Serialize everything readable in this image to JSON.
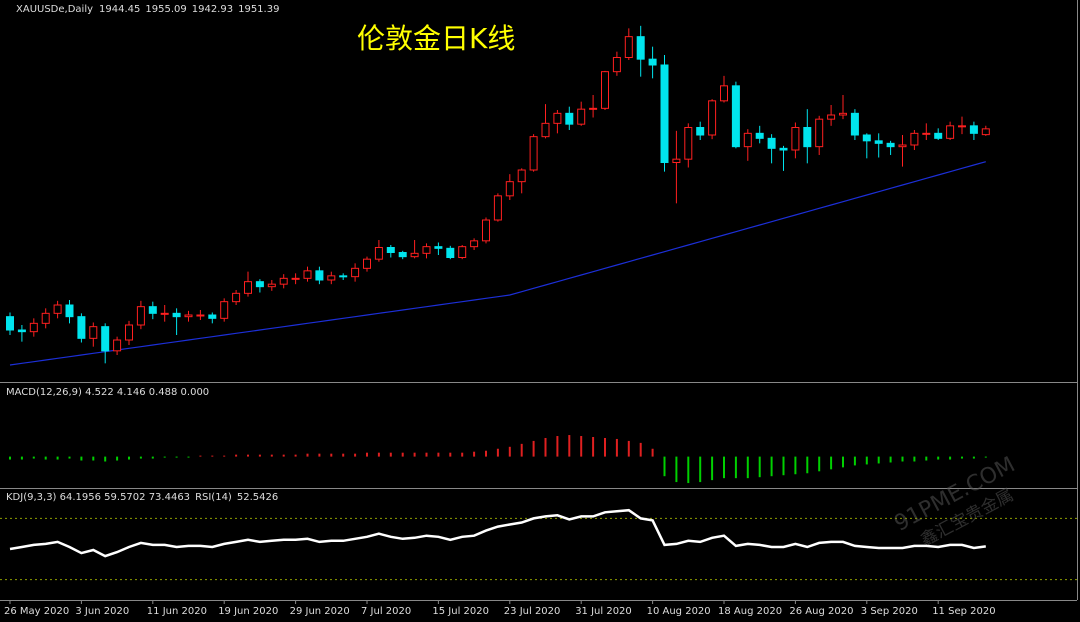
{
  "chart_data": {
    "type": "candlestick",
    "title": "伦敦金日K线",
    "symbol": "XAUUSDe,Daily",
    "categories": [
      "26 May 2020",
      null,
      null,
      null,
      null,
      null,
      "3 Jun 2020",
      null,
      null,
      null,
      null,
      null,
      "11 Jun 2020",
      null,
      null,
      null,
      null,
      null,
      "19 Jun 2020",
      null,
      null,
      null,
      null,
      null,
      "29 Jun 2020",
      null,
      null,
      null,
      null,
      null,
      "7 Jul 2020",
      null,
      null,
      null,
      null,
      null,
      "15 Jul 2020",
      null,
      null,
      null,
      null,
      null,
      "23 Jul 2020",
      null,
      null,
      null,
      null,
      null,
      "31 Jul 2020",
      null,
      null,
      null,
      null,
      null,
      "10 Aug 2020",
      null,
      null,
      null,
      null,
      null,
      "18 Aug 2020",
      null,
      null,
      null,
      null,
      null,
      "26 Aug 2020",
      null,
      null,
      null,
      null,
      null,
      "3 Sep 2020",
      null,
      null,
      null,
      null,
      null,
      "11 Sep 2020",
      null,
      null,
      null,
      null
    ],
    "open": [
      1726,
      1710,
      1708,
      1718,
      1730,
      1740,
      1726,
      1700,
      1714,
      1685,
      1698,
      1716,
      1738,
      1730,
      1730,
      1726,
      1728,
      1728,
      1724,
      1744,
      1754,
      1768,
      1762,
      1765,
      1772,
      1772,
      1781,
      1770,
      1775,
      1774,
      1784,
      1795,
      1809,
      1803,
      1798,
      1802,
      1810,
      1808,
      1797,
      1810,
      1817,
      1842,
      1871,
      1888,
      1902,
      1942,
      1958,
      1970,
      1957,
      1975,
      1976,
      2020,
      2037,
      2062,
      2035,
      2028,
      1911,
      1915,
      1953,
      1944,
      1985,
      2003,
      1930,
      1946,
      1940,
      1928,
      1926,
      1953,
      1930,
      1963,
      1968,
      1970,
      1944,
      1937,
      1934,
      1930,
      1932,
      1946,
      1946,
      1940,
      1955,
      1955,
      1944.45
    ],
    "high": [
      1731,
      1716,
      1724,
      1736,
      1745,
      1746,
      1730,
      1719,
      1718,
      1702,
      1721,
      1745,
      1744,
      1740,
      1736,
      1733,
      1734,
      1731,
      1748,
      1758,
      1780,
      1771,
      1770,
      1777,
      1778,
      1786,
      1786,
      1780,
      1778,
      1790,
      1798,
      1818,
      1812,
      1805,
      1818,
      1814,
      1815,
      1811,
      1812,
      1820,
      1845,
      1874,
      1897,
      1904,
      1945,
      1981,
      1974,
      1978,
      1984,
      1992,
      2021,
      2044,
      2072,
      2075,
      2050,
      2040,
      1949,
      1958,
      1960,
      1987,
      2015,
      2008,
      1951,
      1955,
      1945,
      1931,
      1959,
      1975,
      1967,
      1980,
      1992,
      1975,
      1946,
      1946,
      1937,
      1944,
      1950,
      1958,
      1952,
      1960,
      1966,
      1960,
      1955.09
    ],
    "low": [
      1704,
      1696,
      1702,
      1712,
      1724,
      1718,
      1695,
      1690,
      1670,
      1680,
      1692,
      1711,
      1723,
      1720,
      1704,
      1720,
      1722,
      1718,
      1720,
      1740,
      1750,
      1755,
      1757,
      1760,
      1765,
      1768,
      1765,
      1765,
      1770,
      1768,
      1780,
      1792,
      1797,
      1795,
      1796,
      1796,
      1800,
      1795,
      1795,
      1806,
      1814,
      1840,
      1866,
      1874,
      1900,
      1940,
      1946,
      1950,
      1955,
      1965,
      1974,
      2015,
      2034,
      2014,
      2012,
      1900,
      1862,
      1905,
      1938,
      1939,
      1983,
      1928,
      1913,
      1934,
      1910,
      1901,
      1916,
      1910,
      1920,
      1955,
      1963,
      1938,
      1916,
      1917,
      1920,
      1906,
      1926,
      1938,
      1938,
      1938,
      1945,
      1938,
      1942.93
    ],
    "close": [
      1710,
      1708,
      1718,
      1730,
      1740,
      1726,
      1700,
      1714,
      1685,
      1698,
      1716,
      1738,
      1730,
      1730,
      1726,
      1728,
      1728,
      1724,
      1744,
      1754,
      1768,
      1762,
      1765,
      1772,
      1772,
      1781,
      1770,
      1775,
      1774,
      1784,
      1795,
      1809,
      1803,
      1798,
      1802,
      1810,
      1808,
      1797,
      1810,
      1817,
      1842,
      1871,
      1888,
      1902,
      1942,
      1958,
      1970,
      1957,
      1975,
      1976,
      2020,
      2037,
      2062,
      2035,
      2028,
      1911,
      1915,
      1953,
      1944,
      1985,
      2003,
      1930,
      1946,
      1940,
      1928,
      1926,
      1953,
      1930,
      1963,
      1968,
      1970,
      1944,
      1937,
      1934,
      1930,
      1932,
      1946,
      1946,
      1940,
      1955,
      1955,
      1946,
      1951.39
    ],
    "up_color": "#ff2020",
    "down_color": "#00e5ee",
    "ylim": [
      1650,
      2100
    ],
    "ma": {
      "color": "#1c2fd8",
      "values": [
        1668,
        1670,
        1672,
        1674,
        1676,
        1678,
        1680,
        1682,
        1684,
        1686,
        1688,
        1690,
        1692,
        1694,
        1696,
        1698,
        1700,
        1702,
        1704,
        1706,
        1708,
        1710,
        1712,
        1714,
        1716,
        1718,
        1720,
        1722,
        1724,
        1726,
        1728,
        1730,
        1732,
        1734,
        1736,
        1738,
        1740,
        1742,
        1744,
        1746,
        1748,
        1750,
        1752,
        1756,
        1760,
        1764,
        1768,
        1772,
        1776,
        1780,
        1784,
        1788,
        1792,
        1796,
        1800,
        1804,
        1808,
        1812,
        1816,
        1820,
        1824,
        1828,
        1832,
        1836,
        1840,
        1844,
        1848,
        1852,
        1856,
        1860,
        1864,
        1868,
        1872,
        1876,
        1880,
        1884,
        1888,
        1892,
        1896,
        1900,
        1904,
        1908,
        1912
      ]
    },
    "macd_label": "MACD(12,26,9) 4.522 4.146 0.488 0.000",
    "macd_hist": {
      "up_color": "#e02020",
      "down_color": "#00d000",
      "ylim": [
        -30,
        70
      ],
      "values": [
        -3,
        -3,
        -2,
        -3,
        -3,
        -2,
        -4,
        -4,
        -5,
        -4,
        -3,
        -2,
        -2,
        -1,
        -1,
        -1,
        1,
        1,
        1,
        2,
        2,
        2,
        2,
        2,
        2,
        3,
        3,
        3,
        3,
        3,
        4,
        4,
        4,
        4,
        4,
        4,
        4,
        4,
        4,
        5,
        6,
        8,
        10,
        13,
        16,
        19,
        21,
        22,
        21,
        20,
        19,
        18,
        16,
        14,
        8,
        -20,
        -26,
        -27,
        -26,
        -24,
        -22,
        -22,
        -22,
        -21,
        -20,
        -19,
        -18,
        -17,
        -15,
        -13,
        -11,
        -9,
        -8,
        -7,
        -6,
        -5,
        -5,
        -4,
        -3,
        -3,
        -2,
        -2,
        -1
      ]
    },
    "kdj_label": "KDJ(9,3,3) 64.1956 59.5702 73.4463",
    "rsi_label": "RSI(14)",
    "rsi": {
      "color": "#ffffff",
      "ylim": [
        0,
        100
      ],
      "levels": [
        20,
        80
      ],
      "level_color": "#8fa000",
      "values": [
        50,
        52,
        54,
        55,
        57,
        52,
        46,
        49,
        43,
        47,
        52,
        56,
        54,
        54,
        52,
        53,
        53,
        52,
        55,
        57,
        59,
        57,
        58,
        59,
        59,
        60,
        57,
        58,
        58,
        60,
        62,
        65,
        62,
        60,
        61,
        63,
        62,
        59,
        62,
        63,
        68,
        72,
        74,
        76,
        80,
        82,
        83,
        79,
        82,
        82,
        86,
        87,
        88,
        80,
        78,
        54,
        55,
        58,
        57,
        61,
        63,
        53,
        55,
        54,
        52,
        52,
        55,
        52,
        56,
        57,
        57,
        53,
        52,
        51,
        51,
        51,
        53,
        53,
        52,
        54,
        54,
        51,
        52.5426
      ]
    },
    "watermark": [
      "91PME.COM",
      "鑫汇宝贵金属"
    ]
  }
}
